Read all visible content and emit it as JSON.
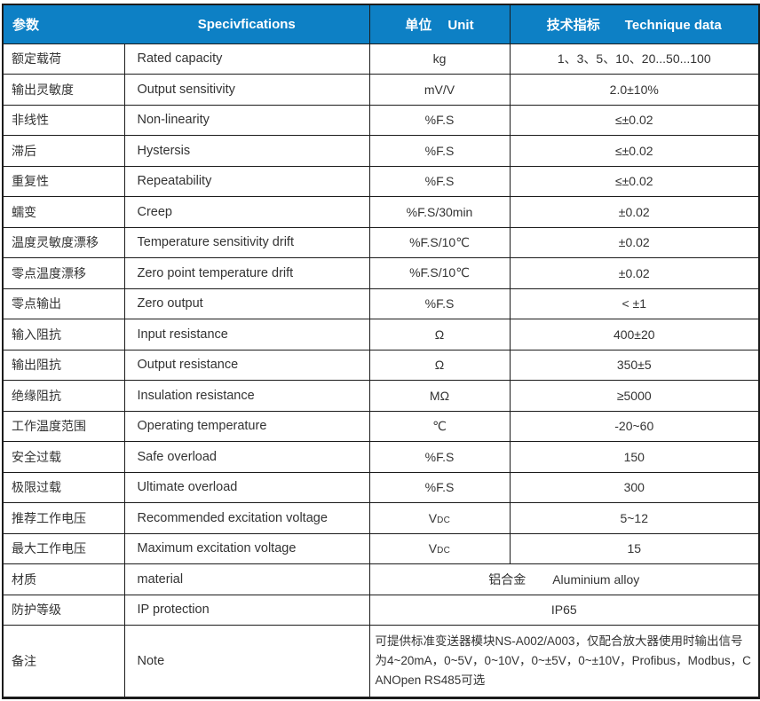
{
  "colors": {
    "header_bg": "#0d80c5",
    "header_text": "#ffffff",
    "body_text": "#333333",
    "border": "#1b1b1b"
  },
  "header": {
    "param": "参数",
    "spec": "Specivfications",
    "unit_cn": "单位",
    "unit_en": "Unit",
    "data_cn": "技术指标",
    "data_en": "Technique data"
  },
  "rows": [
    {
      "cn": "额定载荷",
      "en": "Rated capacity",
      "unit": "kg",
      "value": "1、3、5、10、20...50...100"
    },
    {
      "cn": "输出灵敏度",
      "en": "Output sensitivity",
      "unit": "mV/V",
      "value": "2.0±10%"
    },
    {
      "cn": "非线性",
      "en": "Non-linearity",
      "unit": "%F.S",
      "value": "≤±0.02"
    },
    {
      "cn": "滞后",
      "en": "Hystersis",
      "unit": "%F.S",
      "value": "≤±0.02"
    },
    {
      "cn": "重复性",
      "en": "Repeatability",
      "unit": "%F.S",
      "value": "≤±0.02"
    },
    {
      "cn": "蠕变",
      "en": "Creep",
      "unit": "%F.S/30min",
      "value": "±0.02"
    },
    {
      "cn": "温度灵敏度漂移",
      "en": "Temperature sensitivity drift",
      "unit": "%F.S/10℃",
      "value": "±0.02"
    },
    {
      "cn": "零点温度漂移",
      "en": "Zero point temperature drift",
      "unit": "%F.S/10℃",
      "value": "±0.02"
    },
    {
      "cn": "零点输出",
      "en": "Zero output",
      "unit": "%F.S",
      "value": "< ±1"
    },
    {
      "cn": "输入阻抗",
      "en": "Input resistance",
      "unit": "Ω",
      "value": "400±20"
    },
    {
      "cn": "输出阻抗",
      "en": "Output resistance",
      "unit": "Ω",
      "value": "350±5"
    },
    {
      "cn": "绝缘阻抗",
      "en": "Insulation resistance",
      "unit": "MΩ",
      "value": "≥5000"
    },
    {
      "cn": "工作温度范围",
      "en": "Operating temperature",
      "unit": "℃",
      "value": "-20~60"
    },
    {
      "cn": "安全过载",
      "en": "Safe overload",
      "unit": "%F.S",
      "value": "150"
    },
    {
      "cn": "极限过载",
      "en": "Ultimate overload",
      "unit": "%F.S",
      "value": "300"
    },
    {
      "cn": "推荐工作电压",
      "en": "Recommended excitation voltage",
      "unit": "V",
      "unit_sub": "DC",
      "value": "5~12"
    },
    {
      "cn": "最大工作电压",
      "en": "Maximum excitation voltage",
      "unit": "V",
      "unit_sub": "DC",
      "value": "15"
    }
  ],
  "material_row": {
    "cn": "材质",
    "en": "material",
    "value_cn": "铝合金",
    "value_en": "Aluminium alloy"
  },
  "ip_row": {
    "cn": "防护等级",
    "en": "IP protection",
    "value": "IP65"
  },
  "note_row": {
    "cn": "备注",
    "en": "Note",
    "value": "可提供标准变送器模块NS-A002/A003，仅配合放大器使用时输出信号为4~20mA，0~5V，0~10V，0~±5V，0~±10V，Profibus，Modbus，CANOpen RS485可选"
  }
}
